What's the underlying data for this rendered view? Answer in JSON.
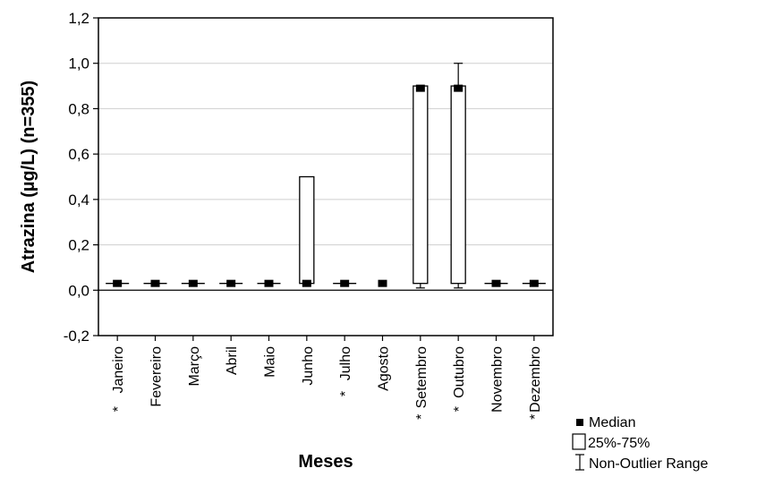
{
  "chart_data": {
    "type": "box",
    "xlabel": "Meses",
    "ylabel": "Atrazina (µg/L) (n=355)",
    "ylim": [
      -0.2,
      1.2
    ],
    "yticks": [
      "-0,2",
      "0,0",
      "0,2",
      "0,4",
      "0,6",
      "0,8",
      "1,0",
      "1,2"
    ],
    "ytick_values": [
      -0.2,
      0.0,
      0.2,
      0.4,
      0.6,
      0.8,
      1.0,
      1.2
    ],
    "grid": "horizontal",
    "legend_position": "bottom-right",
    "categories": [
      "Janeiro",
      "Fevereiro",
      "Março",
      "Abril",
      "Maio",
      "Junho",
      "Julho",
      "Agosto",
      "Setembro",
      "Outubro",
      "Novembro",
      "Dezembro"
    ],
    "marked": [
      true,
      false,
      false,
      false,
      false,
      false,
      true,
      false,
      true,
      true,
      false,
      true
    ],
    "marker_symbol": "*",
    "median": [
      0.03,
      0.03,
      0.03,
      0.03,
      0.03,
      0.03,
      0.03,
      0.03,
      0.89,
      0.89,
      0.03,
      0.03
    ],
    "q1": [
      0.03,
      0.03,
      0.03,
      0.03,
      0.03,
      0.03,
      0.03,
      0.03,
      0.03,
      0.03,
      0.03,
      0.03
    ],
    "q3": [
      0.03,
      0.03,
      0.03,
      0.03,
      0.03,
      0.5,
      0.03,
      0.03,
      0.9,
      0.9,
      0.03,
      0.03
    ],
    "whisker_low": [
      0.03,
      0.03,
      0.03,
      0.03,
      0.03,
      0.03,
      0.03,
      0.03,
      0.01,
      0.01,
      0.03,
      0.03
    ],
    "whisker_high": [
      0.03,
      0.03,
      0.03,
      0.03,
      0.03,
      0.5,
      0.03,
      0.03,
      0.9,
      1.0,
      0.03,
      0.03
    ],
    "has_box": [
      true,
      true,
      true,
      true,
      true,
      true,
      true,
      false,
      true,
      true,
      true,
      true
    ],
    "legend": [
      "Median",
      "25%-75%",
      "Non-Outlier Range"
    ]
  }
}
